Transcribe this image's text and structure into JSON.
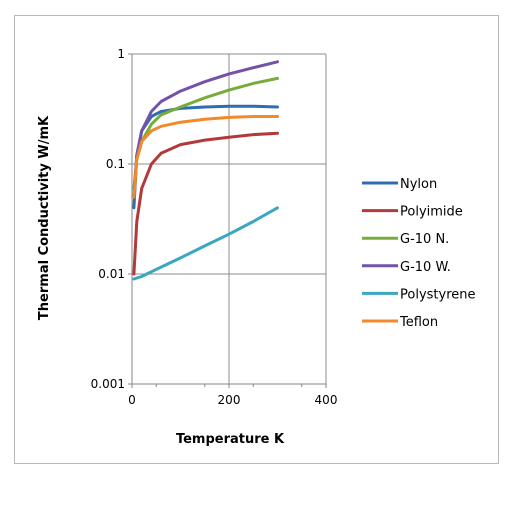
{
  "chart_data": {
    "type": "line",
    "xlabel": "Temperature K",
    "ylabel": "Thermal Conductivity W/mK",
    "xlim": [
      0,
      400
    ],
    "ylim": [
      0.001,
      1
    ],
    "y_scale": "log",
    "x_ticks": [
      "0",
      "200",
      "400"
    ],
    "y_ticks": [
      "0.001",
      "0.01",
      "0.1",
      "1"
    ],
    "grid": true,
    "legend_position": "right",
    "series": [
      {
        "name": "Nylon",
        "color": "#2f6db3",
        "points": [
          [
            4,
            0.04
          ],
          [
            10,
            0.12
          ],
          [
            20,
            0.2
          ],
          [
            40,
            0.27
          ],
          [
            60,
            0.3
          ],
          [
            100,
            0.32
          ],
          [
            150,
            0.33
          ],
          [
            200,
            0.335
          ],
          [
            250,
            0.335
          ],
          [
            300,
            0.33
          ]
        ]
      },
      {
        "name": "Polyimide",
        "color": "#b23a3a",
        "points": [
          [
            4,
            0.01
          ],
          [
            10,
            0.03
          ],
          [
            20,
            0.06
          ],
          [
            40,
            0.1
          ],
          [
            60,
            0.125
          ],
          [
            100,
            0.15
          ],
          [
            150,
            0.165
          ],
          [
            200,
            0.175
          ],
          [
            250,
            0.185
          ],
          [
            300,
            0.19
          ]
        ]
      },
      {
        "name": "G-10 N.",
        "color": "#76ad3a",
        "points": [
          [
            4,
            0.06
          ],
          [
            10,
            0.11
          ],
          [
            20,
            0.16
          ],
          [
            40,
            0.23
          ],
          [
            60,
            0.28
          ],
          [
            100,
            0.33
          ],
          [
            150,
            0.4
          ],
          [
            200,
            0.47
          ],
          [
            250,
            0.54
          ],
          [
            300,
            0.6
          ]
        ]
      },
      {
        "name": "G-10 W.",
        "color": "#7352a8",
        "points": [
          [
            4,
            0.05
          ],
          [
            10,
            0.12
          ],
          [
            20,
            0.2
          ],
          [
            40,
            0.3
          ],
          [
            60,
            0.37
          ],
          [
            100,
            0.46
          ],
          [
            150,
            0.56
          ],
          [
            200,
            0.66
          ],
          [
            250,
            0.75
          ],
          [
            300,
            0.85
          ]
        ]
      },
      {
        "name": "Polystyrene",
        "color": "#39a8bf",
        "points": [
          [
            4,
            0.009
          ],
          [
            10,
            0.0092
          ],
          [
            20,
            0.0095
          ],
          [
            50,
            0.011
          ],
          [
            100,
            0.014
          ],
          [
            150,
            0.018
          ],
          [
            200,
            0.023
          ],
          [
            250,
            0.03
          ],
          [
            300,
            0.04
          ]
        ]
      },
      {
        "name": "Teflon",
        "color": "#f08a2b",
        "points": [
          [
            4,
            0.05
          ],
          [
            10,
            0.11
          ],
          [
            20,
            0.16
          ],
          [
            40,
            0.2
          ],
          [
            60,
            0.22
          ],
          [
            100,
            0.24
          ],
          [
            150,
            0.255
          ],
          [
            200,
            0.265
          ],
          [
            250,
            0.27
          ],
          [
            300,
            0.27
          ]
        ]
      }
    ]
  }
}
